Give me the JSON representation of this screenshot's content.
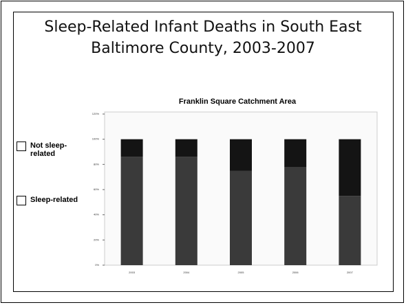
{
  "chart_data": {
    "type": "stacked_bar",
    "title": "Sleep-Related Infant Deaths in South East Baltimore County, 2003-2007",
    "subtitle": "Franklin Square Catchment Area",
    "categories": [
      "2003",
      "2004",
      "2005",
      "2006",
      "2007"
    ],
    "series": [
      {
        "name": "Sleep-related",
        "color": "#3a3a3a",
        "values": [
          86,
          86,
          75,
          78,
          55
        ]
      },
      {
        "name": "Not sleep-related",
        "color": "#141414",
        "values": [
          14,
          14,
          25,
          22,
          45
        ]
      }
    ],
    "ylim": [
      0,
      120
    ],
    "yticks": [
      {
        "value": 0,
        "label": "0%"
      },
      {
        "value": 20,
        "label": "20%"
      },
      {
        "value": 40,
        "label": "40%"
      },
      {
        "value": 60,
        "label": "60%"
      },
      {
        "value": 80,
        "label": "80%"
      },
      {
        "value": 100,
        "label": "100%"
      },
      {
        "value": 120,
        "label": "120%"
      }
    ],
    "grid": false
  }
}
